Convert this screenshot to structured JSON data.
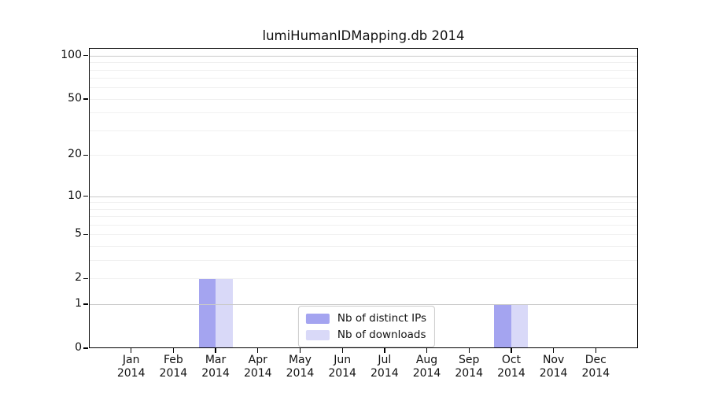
{
  "title": "lumiHumanIDMapping.db 2014",
  "chart_data": {
    "type": "bar",
    "categories": [
      "Jan",
      "Feb",
      "Mar",
      "Apr",
      "May",
      "Jun",
      "Jul",
      "Aug",
      "Sep",
      "Oct",
      "Nov",
      "Dec"
    ],
    "year": "2014",
    "series": [
      {
        "name": "Nb of distinct IPs",
        "color": "#a4a4f0",
        "values": [
          0,
          0,
          2,
          0,
          0,
          0,
          0,
          0,
          0,
          1,
          0,
          0
        ]
      },
      {
        "name": "Nb of downloads",
        "color": "#d9d9f8",
        "values": [
          0,
          0,
          2,
          0,
          0,
          0,
          0,
          0,
          0,
          1,
          0,
          0
        ]
      }
    ],
    "xlabel": "",
    "ylabel": "",
    "yscale": "log1p",
    "ylim": [
      0,
      113
    ],
    "yticks": [
      0,
      1,
      2,
      5,
      10,
      20,
      50,
      100
    ],
    "grid": {
      "major_values": [
        1,
        10,
        100
      ],
      "minor_values": [
        2,
        3,
        4,
        5,
        6,
        7,
        8,
        9,
        20,
        30,
        40,
        50,
        60,
        70,
        80,
        90
      ],
      "major_color": "#c9c9c9",
      "minor_color": "#f0f0f0",
      "drawn_above_bars": true
    },
    "legend": {
      "position": "lower center",
      "entries": [
        "Nb of distinct IPs",
        "Nb of downloads"
      ]
    },
    "bar_width_axis_units": 0.4,
    "x_axis_units_span": 13
  }
}
